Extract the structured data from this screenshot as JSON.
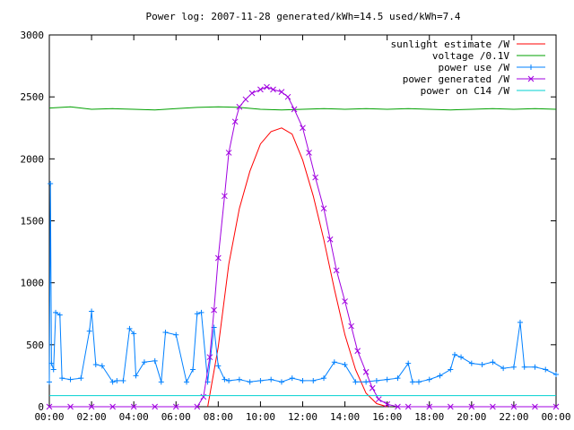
{
  "chart_data": {
    "type": "line",
    "title": "Power log: 2007-11-28 generated/kWh=14.5 used/kWh=7.4",
    "xlabel": "",
    "ylabel": "",
    "xlim": [
      0,
      24
    ],
    "ylim": [
      0,
      3000
    ],
    "xticks": [
      0,
      2,
      4,
      6,
      8,
      10,
      12,
      14,
      16,
      18,
      20,
      22,
      24
    ],
    "xtick_labels": [
      "00:00",
      "02:00",
      "04:00",
      "06:00",
      "08:00",
      "10:00",
      "12:00",
      "14:00",
      "16:00",
      "18:00",
      "20:00",
      "22:00",
      "00:00"
    ],
    "yticks": [
      0,
      500,
      1000,
      1500,
      2000,
      2500,
      3000
    ],
    "ytick_labels": [
      "0",
      "500",
      "1000",
      "1500",
      "2000",
      "2500",
      "3000"
    ],
    "grid": false,
    "legend_position": "top-right",
    "series": [
      {
        "name": "sunlight estimate /W",
        "color": "#ff0000",
        "marker": "none",
        "x": [
          7.5,
          8.0,
          8.5,
          9.0,
          9.5,
          10.0,
          10.5,
          11.0,
          11.5,
          12.0,
          12.5,
          13.0,
          13.5,
          14.0,
          14.5,
          15.0,
          15.5,
          16.0
        ],
        "y": [
          0,
          480,
          1150,
          1600,
          1900,
          2120,
          2220,
          2250,
          2200,
          1990,
          1700,
          1350,
          950,
          580,
          300,
          110,
          25,
          0
        ]
      },
      {
        "name": "voltage /0.1V",
        "color": "#00a000",
        "marker": "none",
        "x": [
          0,
          1,
          2,
          3,
          4,
          5,
          6,
          7,
          8,
          9,
          10,
          11,
          12,
          13,
          14,
          15,
          16,
          17,
          18,
          19,
          20,
          21,
          22,
          23,
          24
        ],
        "y": [
          2410,
          2420,
          2400,
          2405,
          2400,
          2395,
          2405,
          2415,
          2420,
          2415,
          2400,
          2395,
          2400,
          2405,
          2400,
          2405,
          2400,
          2405,
          2400,
          2395,
          2400,
          2405,
          2400,
          2405,
          2400
        ]
      },
      {
        "name": "power use /W",
        "color": "#0080ff",
        "marker": "+",
        "x": [
          0.0,
          0.05,
          0.1,
          0.2,
          0.3,
          0.5,
          0.6,
          1.0,
          1.5,
          1.9,
          2.0,
          2.2,
          2.5,
          3.0,
          3.2,
          3.5,
          3.8,
          4.0,
          4.1,
          4.5,
          5.0,
          5.3,
          5.5,
          6.0,
          6.5,
          6.8,
          7.0,
          7.2,
          7.5,
          7.8,
          8.0,
          8.3,
          8.5,
          9.0,
          9.5,
          10.0,
          10.5,
          11.0,
          11.5,
          12.0,
          12.5,
          13.0,
          13.5,
          14.0,
          14.5,
          15.0,
          15.5,
          16.0,
          16.5,
          17.0,
          17.2,
          17.5,
          18.0,
          18.5,
          19.0,
          19.2,
          19.5,
          20.0,
          20.5,
          21.0,
          21.5,
          22.0,
          22.3,
          22.5,
          23.0,
          23.5,
          24.0
        ],
        "y": [
          200,
          1800,
          350,
          300,
          760,
          740,
          230,
          220,
          230,
          610,
          770,
          340,
          330,
          200,
          210,
          210,
          630,
          590,
          250,
          360,
          370,
          200,
          600,
          580,
          200,
          300,
          750,
          760,
          200,
          640,
          330,
          220,
          210,
          220,
          200,
          210,
          220,
          200,
          230,
          210,
          210,
          230,
          360,
          340,
          200,
          200,
          210,
          220,
          230,
          350,
          200,
          200,
          220,
          250,
          300,
          420,
          400,
          350,
          340,
          360,
          310,
          320,
          680,
          320,
          320,
          300,
          260
        ]
      },
      {
        "name": "power generated /W",
        "color": "#a000e0",
        "marker": "x",
        "x": [
          0.0,
          1.0,
          2.0,
          3.0,
          4.0,
          5.0,
          6.0,
          7.0,
          7.3,
          7.6,
          7.8,
          8.0,
          8.3,
          8.5,
          8.8,
          9.0,
          9.3,
          9.6,
          10.0,
          10.3,
          10.6,
          11.0,
          11.3,
          11.6,
          12.0,
          12.3,
          12.6,
          13.0,
          13.3,
          13.6,
          14.0,
          14.3,
          14.6,
          15.0,
          15.3,
          15.6,
          16.0,
          16.5,
          17.0,
          18.0,
          19.0,
          20.0,
          21.0,
          22.0,
          23.0,
          24.0
        ],
        "y": [
          0,
          0,
          0,
          0,
          0,
          0,
          0,
          0,
          80,
          400,
          780,
          1200,
          1700,
          2050,
          2300,
          2420,
          2480,
          2530,
          2560,
          2580,
          2560,
          2540,
          2500,
          2400,
          2250,
          2050,
          1850,
          1600,
          1350,
          1100,
          850,
          650,
          450,
          280,
          150,
          60,
          20,
          0,
          0,
          0,
          0,
          0,
          0,
          0,
          0,
          0
        ]
      },
      {
        "name": "power on C14 /W",
        "color": "#00d0d0",
        "marker": "none",
        "x": [
          0,
          24
        ],
        "y": [
          90,
          90
        ]
      }
    ]
  }
}
